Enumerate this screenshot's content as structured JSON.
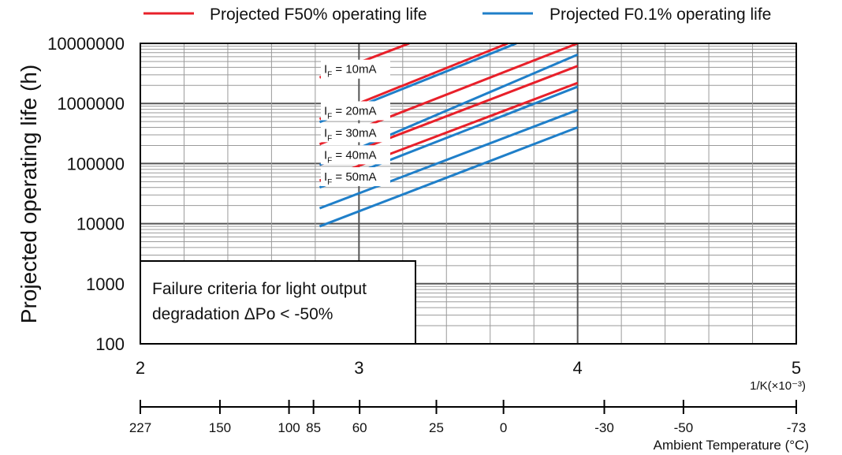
{
  "chart_data": {
    "type": "line",
    "ylabel": "Projected operating life (h)",
    "xlabel": "1/K(×10⁻³)",
    "x_scale": "linear",
    "y_scale": "log",
    "xlim": [
      2,
      5
    ],
    "ylim": [
      100,
      10000000
    ],
    "grid": true,
    "legend_position": "top",
    "x_ticks": [
      "2",
      "3",
      "4",
      "5"
    ],
    "y_ticks": [
      "10000000",
      "1000000",
      "100000",
      "10000",
      "1000",
      "100"
    ],
    "secondary_axis": {
      "label": "Ambient Temperature (°C)",
      "ticks": [
        {
          "label": "227",
          "inv_k": 2.0
        },
        {
          "label": "150",
          "inv_k": 2.364
        },
        {
          "label": "100",
          "inv_k": 2.68
        },
        {
          "label": "85",
          "inv_k": 2.792
        },
        {
          "label": "60",
          "inv_k": 3.003
        },
        {
          "label": "25",
          "inv_k": 3.354
        },
        {
          "label": "0",
          "inv_k": 3.661
        },
        {
          "label": "-30",
          "inv_k": 4.122
        },
        {
          "label": "-50",
          "inv_k": 4.484
        },
        {
          "label": "-73",
          "inv_k": 5.0
        }
      ]
    },
    "legend": [
      {
        "name": "Projected F50% operating life",
        "color": "#e8202a"
      },
      {
        "name": "Projected F0.1% operating life",
        "color": "#1f7fc9"
      }
    ],
    "series": [
      {
        "group": "F50",
        "current": "10mA",
        "color": "#e8202a",
        "points": [
          [
            2.82,
            2700000
          ],
          [
            3.23,
            10000000
          ]
        ]
      },
      {
        "group": "F50",
        "current": "20mA",
        "color": "#e8202a",
        "points": [
          [
            2.82,
            550000
          ],
          [
            3.68,
            10000000
          ]
        ]
      },
      {
        "group": "F50",
        "current": "30mA",
        "color": "#e8202a",
        "points": [
          [
            2.82,
            210000
          ],
          [
            4.0,
            10000000
          ]
        ]
      },
      {
        "group": "F50",
        "current": "40mA",
        "color": "#e8202a",
        "points": [
          [
            2.82,
            95000
          ],
          [
            4.0,
            4200000
          ]
        ]
      },
      {
        "group": "F50",
        "current": "50mA",
        "color": "#e8202a",
        "points": [
          [
            2.82,
            52000
          ],
          [
            4.0,
            2200000
          ]
        ]
      },
      {
        "group": "F0.1",
        "current": "10mA",
        "color": "#1f7fc9",
        "points": [
          [
            2.82,
            490000
          ],
          [
            3.72,
            10000000
          ]
        ]
      },
      {
        "group": "F0.1",
        "current": "20mA",
        "color": "#1f7fc9",
        "points": [
          [
            2.82,
            95000
          ],
          [
            4.0,
            6500000
          ]
        ]
      },
      {
        "group": "F0.1",
        "current": "30mA",
        "color": "#1f7fc9",
        "points": [
          [
            2.82,
            40000
          ],
          [
            4.0,
            1900000
          ]
        ]
      },
      {
        "group": "F0.1",
        "current": "40mA",
        "color": "#1f7fc9",
        "points": [
          [
            2.82,
            18000
          ],
          [
            4.0,
            780000
          ]
        ]
      },
      {
        "group": "F0.1",
        "current": "50mA",
        "color": "#1f7fc9",
        "points": [
          [
            2.82,
            9000
          ],
          [
            4.0,
            400000
          ]
        ]
      }
    ],
    "annotations": [
      {
        "label": "I",
        "subscript": "F",
        "value": "10mA",
        "x": 2.84,
        "y": 3200000
      },
      {
        "label": "I",
        "subscript": "F",
        "value": "20mA",
        "x": 2.84,
        "y": 650000
      },
      {
        "label": "I",
        "subscript": "F",
        "value": "30mA",
        "x": 2.84,
        "y": 280000
      },
      {
        "label": "I",
        "subscript": "F",
        "value": "40mA",
        "x": 2.84,
        "y": 120000
      },
      {
        "label": "I",
        "subscript": "F",
        "value": "50mA",
        "x": 2.84,
        "y": 52000
      }
    ],
    "note": {
      "line1": "Failure criteria for light output",
      "line2": "degradation ΔPo < -50%"
    }
  }
}
